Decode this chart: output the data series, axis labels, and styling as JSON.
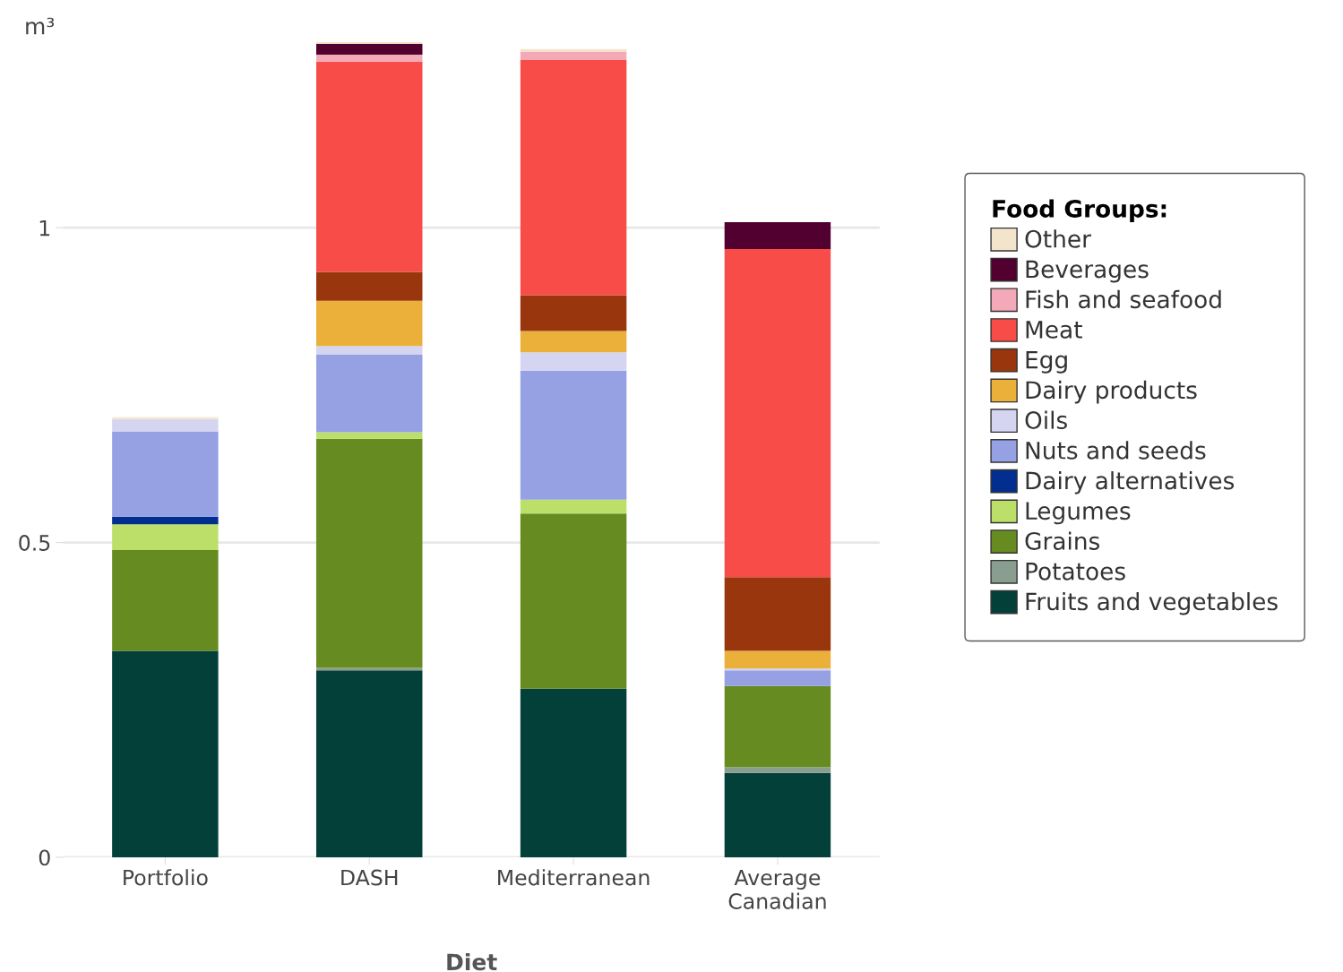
{
  "chart_data": {
    "type": "bar",
    "stacked": true,
    "xlabel": "Diet",
    "ylabel": "m³",
    "legend_title": "Food Groups:",
    "legend": "right",
    "grid": "y",
    "categories": [
      "Portfolio",
      "DASH",
      "Mediterranean",
      "Average\nCanadian"
    ],
    "ylim": [
      0,
      1.3
    ],
    "yticks": [
      0,
      0.5,
      1
    ],
    "series": [
      {
        "name": "Fruits and vegetables",
        "color": "#04403a",
        "values": [
          0.328,
          0.297,
          0.268,
          0.134
        ]
      },
      {
        "name": "Potatoes",
        "color": "#8a9e8f",
        "values": [
          0,
          0.004,
          0,
          0.009
        ]
      },
      {
        "name": "Grains",
        "color": "#668b21",
        "values": [
          0.16,
          0.364,
          0.278,
          0.129
        ]
      },
      {
        "name": "Legumes",
        "color": "#bcdf6a",
        "values": [
          0.041,
          0.01,
          0.022,
          0
        ]
      },
      {
        "name": "Dairy alternatives",
        "color": "#022f8f",
        "values": [
          0.012,
          0,
          0,
          0
        ]
      },
      {
        "name": "Nuts and seeds",
        "color": "#95a1e3",
        "values": [
          0.135,
          0.124,
          0.205,
          0.025
        ]
      },
      {
        "name": "Oils",
        "color": "#d5d5f1",
        "values": [
          0.02,
          0.013,
          0.029,
          0.003
        ]
      },
      {
        "name": "Dairy products",
        "color": "#ebb03a",
        "values": [
          0,
          0.072,
          0.034,
          0.028
        ]
      },
      {
        "name": "Egg",
        "color": "#9a360e",
        "values": [
          0,
          0.046,
          0.057,
          0.117
        ]
      },
      {
        "name": "Meat",
        "color": "#f74c48",
        "values": [
          0,
          0.334,
          0.374,
          0.521
        ]
      },
      {
        "name": "Fish and seafood",
        "color": "#f4a9b8",
        "values": [
          0,
          0.011,
          0.013,
          0
        ]
      },
      {
        "name": "Beverages",
        "color": "#520030",
        "values": [
          0,
          0.017,
          0,
          0.043
        ]
      },
      {
        "name": "Other",
        "color": "#f3e5cc",
        "values": [
          0.003,
          0.003,
          0.004,
          0
        ]
      }
    ]
  }
}
